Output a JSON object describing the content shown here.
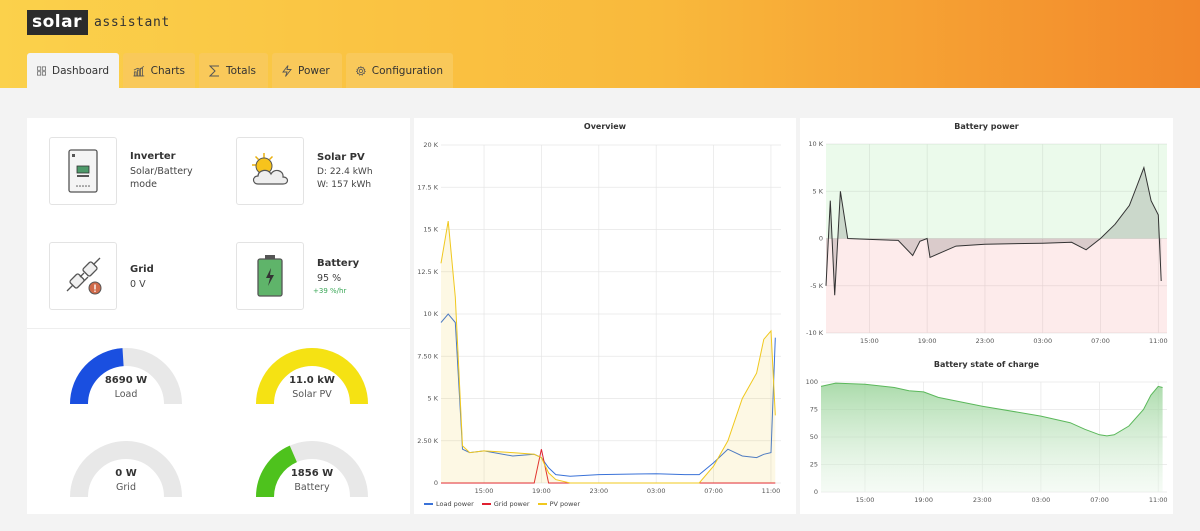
{
  "app": {
    "logo_box": "solar",
    "logo_text": "assistant"
  },
  "tabs": [
    {
      "label": "Dashboard",
      "icon": "grid-icon",
      "active": true
    },
    {
      "label": "Charts",
      "icon": "bar-chart-icon"
    },
    {
      "label": "Totals",
      "icon": "sigma-icon"
    },
    {
      "label": "Power",
      "icon": "lightning-icon"
    },
    {
      "label": "Configuration",
      "icon": "gear-icon"
    }
  ],
  "status": {
    "inverter": {
      "title": "Inverter",
      "line1": "Solar/Battery",
      "line2": "mode"
    },
    "solar_pv": {
      "title": "Solar PV",
      "line1": "D: 22.4 kWh",
      "line2": "W: 157 kWh"
    },
    "grid": {
      "title": "Grid",
      "line1": "0 V"
    },
    "battery": {
      "title": "Battery",
      "line1": "95 %",
      "rate": "+39 %/hr"
    }
  },
  "gauges": [
    {
      "value": "8690 W",
      "label": "Load",
      "fraction": 0.48,
      "color": "#1a4fe0"
    },
    {
      "value": "11.0 kW",
      "label": "Solar PV",
      "fraction": 1.0,
      "color": "#f5e213"
    },
    {
      "value": "0 W",
      "label": "Grid",
      "fraction": 0.0,
      "color": "#1a4fe0"
    },
    {
      "value": "1856 W",
      "label": "Battery",
      "fraction": 0.37,
      "color": "#4ec21d"
    }
  ],
  "chart_data": [
    {
      "type": "line",
      "title": "Overview",
      "ylim": [
        0,
        20000
      ],
      "yticks": [
        "0",
        "2.50 K",
        "5 K",
        "7.50 K",
        "10 K",
        "12.5 K",
        "15 K",
        "17.5 K",
        "20 K"
      ],
      "xticks": [
        "15:00",
        "19:00",
        "23:00",
        "03:00",
        "07:00",
        "11:00"
      ],
      "grid": true,
      "legend_position": "bottom-left",
      "x_hours": [
        12,
        12.5,
        13,
        13.5,
        14,
        15,
        17,
        18.5,
        19,
        19.5,
        20,
        21,
        23,
        3,
        5,
        6,
        7,
        8,
        9,
        10,
        10.5,
        11,
        11.3
      ],
      "series": [
        {
          "name": "Load power",
          "color": "#3a72d8",
          "values": [
            9500,
            10000,
            9500,
            2000,
            1800,
            1900,
            1600,
            1700,
            1500,
            900,
            500,
            400,
            500,
            550,
            500,
            500,
            1200,
            2000,
            1600,
            1500,
            1700,
            1800,
            8600
          ]
        },
        {
          "name": "Grid power",
          "color": "#e02030",
          "values": [
            0,
            0,
            0,
            0,
            0,
            0,
            0,
            0,
            2000,
            0,
            0,
            0,
            0,
            0,
            0,
            0,
            0,
            0,
            0,
            0,
            0,
            0,
            0
          ]
        },
        {
          "name": "PV power",
          "color": "#f0c81e",
          "values": [
            13000,
            15500,
            11000,
            2200,
            1800,
            1900,
            1800,
            1700,
            1500,
            600,
            200,
            0,
            0,
            0,
            0,
            0,
            1000,
            2500,
            5000,
            6500,
            8500,
            9000,
            4000
          ]
        }
      ]
    },
    {
      "type": "area",
      "title": "Battery power",
      "ylim": [
        -10000,
        10000
      ],
      "yticks": [
        "-10 K",
        "-5 K",
        "0",
        "5 K",
        "10 K"
      ],
      "xticks": [
        "15:00",
        "19:00",
        "23:00",
        "03:00",
        "07:00",
        "11:00"
      ],
      "x_hours": [
        12,
        12.3,
        12.6,
        13,
        13.5,
        15,
        17,
        18,
        18.5,
        19,
        19.2,
        21,
        23,
        3,
        5,
        6,
        7,
        8,
        9,
        9.5,
        10,
        10.5,
        11,
        11.2
      ],
      "series": [
        {
          "name": "Battery power",
          "color": "#333333",
          "values": [
            -5000,
            4000,
            -6000,
            5000,
            0,
            -100,
            -200,
            -1800,
            -300,
            0,
            -2000,
            -800,
            -600,
            -500,
            -400,
            -1200,
            0,
            1500,
            3500,
            5500,
            7500,
            4000,
            2500,
            -4500
          ]
        }
      ]
    },
    {
      "type": "area",
      "title": "Battery state of charge",
      "ylim": [
        0,
        100
      ],
      "yticks": [
        "0",
        "25",
        "50",
        "75",
        "100"
      ],
      "xticks": [
        "15:00",
        "19:00",
        "23:00",
        "03:00",
        "07:00",
        "11:00"
      ],
      "x_hours": [
        12,
        13,
        15,
        17,
        18,
        19,
        20,
        23,
        3,
        5,
        6,
        7,
        7.5,
        8,
        9,
        10,
        10.5,
        11,
        11.3
      ],
      "series": [
        {
          "name": "Battery state of charge",
          "color": "#5bb85b",
          "values": [
            96,
            99,
            98,
            95,
            92,
            91,
            86,
            78,
            69,
            63,
            57,
            52,
            51,
            52,
            60,
            75,
            88,
            96,
            95
          ]
        }
      ]
    }
  ]
}
